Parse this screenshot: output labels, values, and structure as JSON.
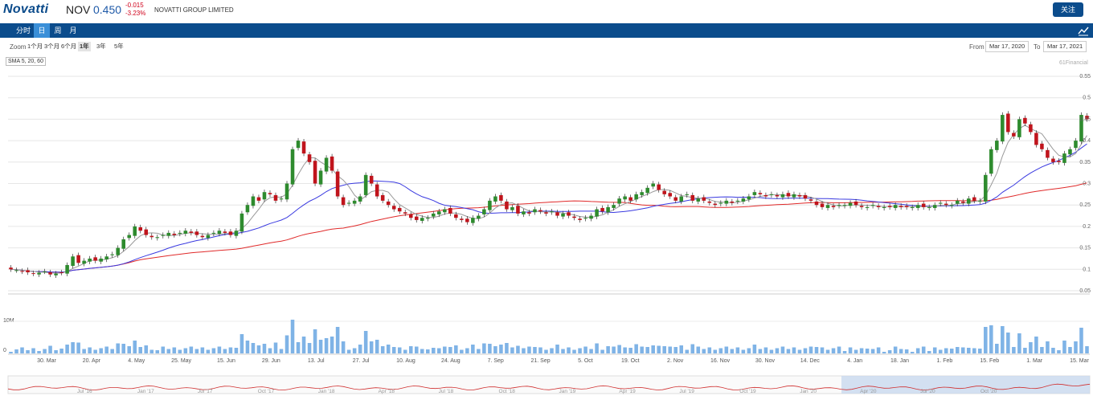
{
  "header": {
    "logo": "Novatti",
    "ticker": "NOV",
    "price": "0.450",
    "change": "-0.015",
    "change_pct": "-3.23%",
    "company": "NOVATTI GROUP LIMITED",
    "follow_label": "关注"
  },
  "tabs": [
    "分时",
    "日",
    "周",
    "月"
  ],
  "active_tab": "日",
  "toolbar": {
    "zoom_label": "Zoom",
    "zoom_options": [
      "1个月",
      "3个月",
      "6个月",
      "1年",
      "3年",
      "5年"
    ],
    "active_zoom": "1年",
    "from_label": "From",
    "from_value": "Mar 17, 2020",
    "to_label": "To",
    "to_value": "Mar 17, 2021"
  },
  "indicator_label": "SMA 5, 20, 60",
  "credit": "61Financial",
  "colors": {
    "up": "#2e8b2e",
    "down": "#c0141c",
    "sma5": "#999999",
    "sma20": "#3a3ae0",
    "sma60": "#e02a2a",
    "volume": "#7fb3e6",
    "brand": "#0b4c8c"
  },
  "chart_data": {
    "type": "candlestick",
    "y_ticks": [
      "0.55",
      "0.5",
      "0.45",
      "0.4",
      "0.35",
      "0.3",
      "0.25",
      "0.2",
      "0.15",
      "0.1",
      "0.05"
    ],
    "ylim": [
      0.05,
      0.55
    ],
    "x_ticks": [
      "30. Mar",
      "20. Apr",
      "4. May",
      "25. May",
      "15. Jun",
      "29. Jun",
      "13. Jul",
      "27. Jul",
      "10. Aug",
      "24. Aug",
      "7. Sep",
      "21. Sep",
      "5. Oct",
      "19. Oct",
      "2. Nov",
      "16. Nov",
      "30. Nov",
      "14. Dec",
      "4. Jan",
      "18. Jan",
      "1. Feb",
      "15. Feb",
      "1. Mar",
      "15. Mar"
    ],
    "volume_ticks": [
      "10M",
      "0"
    ],
    "navigator_ticks": [
      "Jul '16",
      "Jan '17",
      "Jul '17",
      "Oct '17",
      "Jan '18",
      "Apr '18",
      "Jul '18",
      "Oct '18",
      "Jan '19",
      "Apr '19",
      "Jul '19",
      "Oct '19",
      "Jan '20",
      "Apr '20",
      "Jul '20",
      "Oct '20"
    ],
    "close": [
      0.1,
      0.098,
      0.095,
      0.093,
      0.09,
      0.092,
      0.095,
      0.088,
      0.09,
      0.092,
      0.11,
      0.13,
      0.115,
      0.12,
      0.125,
      0.12,
      0.125,
      0.13,
      0.135,
      0.15,
      0.17,
      0.18,
      0.2,
      0.19,
      0.18,
      0.175,
      0.175,
      0.18,
      0.185,
      0.18,
      0.185,
      0.19,
      0.185,
      0.18,
      0.175,
      0.18,
      0.185,
      0.19,
      0.185,
      0.18,
      0.19,
      0.23,
      0.25,
      0.27,
      0.26,
      0.28,
      0.275,
      0.26,
      0.265,
      0.3,
      0.38,
      0.4,
      0.37,
      0.35,
      0.3,
      0.33,
      0.36,
      0.33,
      0.27,
      0.25,
      0.255,
      0.26,
      0.27,
      0.32,
      0.3,
      0.27,
      0.26,
      0.25,
      0.24,
      0.235,
      0.23,
      0.22,
      0.215,
      0.22,
      0.22,
      0.23,
      0.235,
      0.24,
      0.23,
      0.22,
      0.215,
      0.21,
      0.22,
      0.225,
      0.24,
      0.26,
      0.27,
      0.26,
      0.24,
      0.245,
      0.23,
      0.235,
      0.23,
      0.24,
      0.235,
      0.23,
      0.235,
      0.225,
      0.23,
      0.225,
      0.22,
      0.215,
      0.22,
      0.225,
      0.24,
      0.235,
      0.245,
      0.25,
      0.265,
      0.27,
      0.26,
      0.275,
      0.28,
      0.29,
      0.3,
      0.285,
      0.275,
      0.27,
      0.26,
      0.27,
      0.275,
      0.26,
      0.265,
      0.26,
      0.255,
      0.25,
      0.255,
      0.26,
      0.255,
      0.26,
      0.265,
      0.27,
      0.28,
      0.275,
      0.27,
      0.275,
      0.27,
      0.275,
      0.27,
      0.275,
      0.27,
      0.265,
      0.26,
      0.25,
      0.245,
      0.25,
      0.245,
      0.25,
      0.25,
      0.255,
      0.25,
      0.245,
      0.245,
      0.25,
      0.245,
      0.245,
      0.245,
      0.25,
      0.245,
      0.245,
      0.245,
      0.25,
      0.245,
      0.245,
      0.25,
      0.255,
      0.25,
      0.25,
      0.26,
      0.255,
      0.265,
      0.26,
      0.26,
      0.32,
      0.38,
      0.4,
      0.46,
      0.42,
      0.41,
      0.45,
      0.44,
      0.42,
      0.39,
      0.38,
      0.36,
      0.35,
      0.35,
      0.37,
      0.38,
      0.4,
      0.46,
      0.45
    ]
  }
}
